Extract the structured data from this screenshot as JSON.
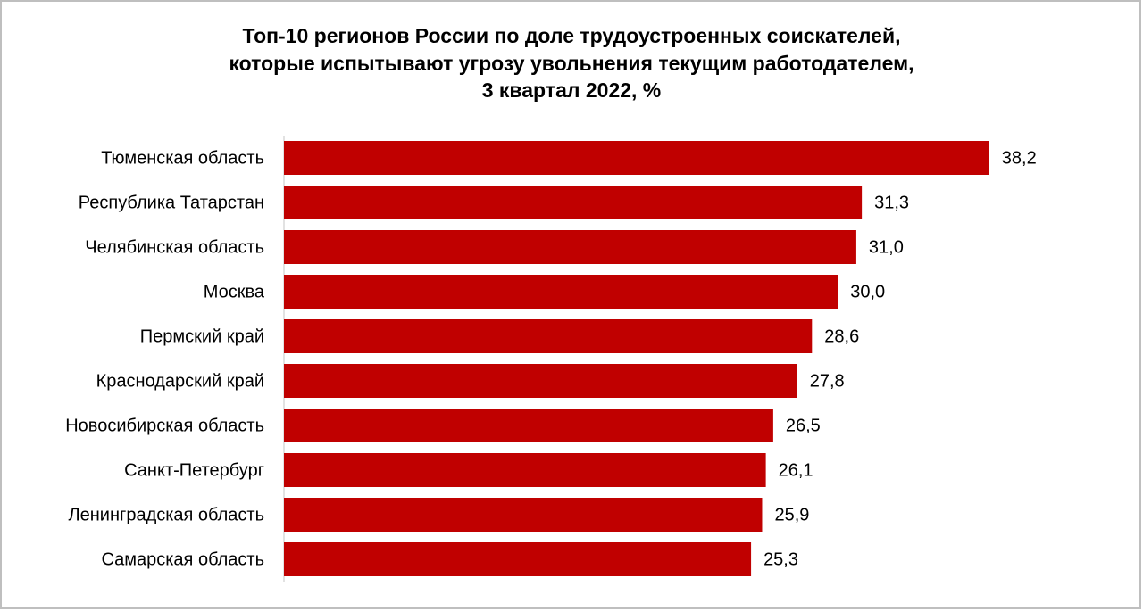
{
  "chart_data": {
    "type": "bar",
    "orientation": "horizontal",
    "title": [
      "Топ-10 регионов России по доле трудоустроенных соискателей,",
      "которые испытывают угрозу увольнения текущим работодателем,",
      "3 квартал 2022, %"
    ],
    "categories": [
      "Тюменская область",
      "Республика Татарстан",
      "Челябинская область",
      "Москва",
      "Пермский край",
      "Краснодарский край",
      "Новосибирская область",
      "Санкт-Петербург",
      "Ленинградская область",
      "Самарская область"
    ],
    "values": [
      38.2,
      31.3,
      31.0,
      30.0,
      28.6,
      27.8,
      26.5,
      26.1,
      25.9,
      25.3
    ],
    "value_labels": [
      "38,2",
      "31,3",
      "31,0",
      "30,0",
      "28,6",
      "27,8",
      "26,5",
      "26,1",
      "25,9",
      "25,3"
    ],
    "color": "#c00000",
    "xlim": [
      0,
      40
    ]
  }
}
